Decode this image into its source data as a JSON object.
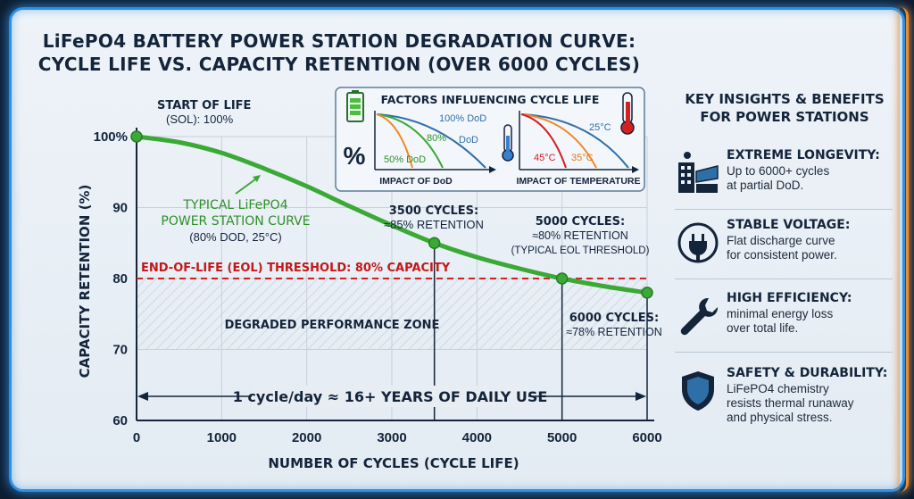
{
  "title_line1": "LiFePO4 BATTERY POWER STATION DEGRADATION CURVE:",
  "title_line2": "CYCLE LIFE VS. CAPACITY RETENTION (OVER 6000 CYCLES)",
  "colors": {
    "curve": "#3aa935",
    "eol": "#d42020",
    "axis": "#13243b",
    "frame": "#2f8fe0",
    "frame_accent": "#f08a2a"
  },
  "chart_data": {
    "type": "line",
    "xlabel": "NUMBER OF CYCLES (CYCLE LIFE)",
    "ylabel": "CAPACITY RETENTION (%)",
    "xlim": [
      0,
      6000
    ],
    "ylim": [
      60,
      100
    ],
    "x_ticks": [
      "0",
      "1000",
      "2000",
      "3000",
      "4000",
      "5000",
      "6000"
    ],
    "y_ticks": [
      "60",
      "70",
      "80",
      "90",
      "100%"
    ],
    "grid": true,
    "series": [
      {
        "x": [
          0,
          500,
          1000,
          1500,
          2000,
          2500,
          3000,
          3500,
          4000,
          4500,
          5000,
          5500,
          6000
        ],
        "y": [
          100,
          99.2,
          97.7,
          95.5,
          93.0,
          90.2,
          87.5,
          85.0,
          83.0,
          81.4,
          80.0,
          78.9,
          78.0
        ]
      }
    ],
    "points": [
      {
        "x": 0,
        "y": 100
      },
      {
        "x": 3500,
        "y": 85
      },
      {
        "x": 5000,
        "y": 80
      },
      {
        "x": 6000,
        "y": 78
      }
    ],
    "eol_threshold": 80,
    "annotations": {
      "sol_line1": "START OF LIFE",
      "sol_line2": "(SOL): 100%",
      "curve_line1": "TYPICAL LiFePO4",
      "curve_line2": "POWER STATION CURVE",
      "curve_line3": "(80% DOD, 25°C)",
      "p3500_line1": "3500 CYCLES:",
      "p3500_line2": "≈85% RETENTION",
      "p5000_line1": "5000 CYCLES:",
      "p5000_line2": "≈80% RETENTION",
      "p5000_line3": "(TYPICAL EOL THRESHOLD)",
      "p6000_line1": "6000 CYCLES:",
      "p6000_line2": "≈78% RETENTION",
      "eol_label": "END-OF-LIFE (EOL) THRESHOLD: 80% CAPACITY",
      "degraded_zone": "DEGRADED PERFORMANCE ZONE",
      "years": "1 cycle/day ≈ 16+ YEARS OF DAILY USE"
    }
  },
  "factors": {
    "title": "FACTORS INFLUENCING CYCLE LIFE",
    "percent_symbol": "%",
    "dod_labels": [
      "100% DoD",
      "80%",
      "DoD",
      "50% DoD"
    ],
    "dod_caption": "IMPACT OF DoD",
    "temp_labels": [
      "25°C",
      "45°C",
      "35°C"
    ],
    "temp_caption": "IMPACT OF TEMPERATURE"
  },
  "insights": {
    "heading_line1": "KEY INSIGHTS & BENEFITS",
    "heading_line2": "FOR POWER STATIONS",
    "items": [
      {
        "title": "EXTREME LONGEVITY:",
        "text": "Up to 6000+ cycles\nat partial DoD.",
        "icon": "solar-building-icon"
      },
      {
        "title": "STABLE VOLTAGE:",
        "text": "Flat discharge curve\nfor consistent power.",
        "icon": "plug-icon"
      },
      {
        "title": "HIGH EFFICIENCY:",
        "text": "minimal energy loss\nover total life.",
        "icon": "wrench-icon"
      },
      {
        "title": "SAFETY & DURABILITY:",
        "text": "LiFePO4 chemistry\nresists thermal runaway\nand physical stress.",
        "icon": "shield-icon"
      }
    ]
  }
}
